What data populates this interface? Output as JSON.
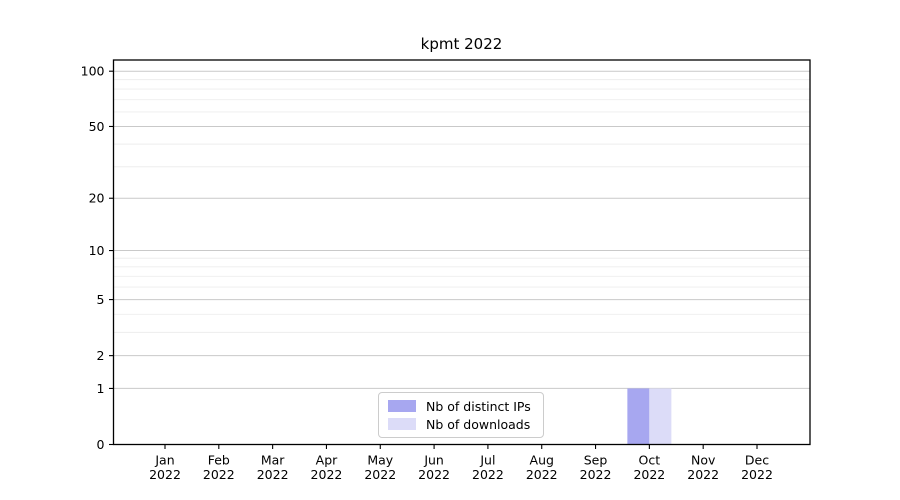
{
  "chart_data": {
    "type": "bar",
    "title": "kpmt 2022",
    "categories": [
      "Jan 2022",
      "Feb 2022",
      "Mar 2022",
      "Apr 2022",
      "May 2022",
      "Jun 2022",
      "Jul 2022",
      "Aug 2022",
      "Sep 2022",
      "Oct 2022",
      "Nov 2022",
      "Dec 2022"
    ],
    "series": [
      {
        "name": "Nb of distinct IPs",
        "color": "#a7a7f0",
        "values": [
          0,
          0,
          0,
          0,
          0,
          0,
          0,
          0,
          0,
          1,
          0,
          0
        ]
      },
      {
        "name": "Nb of downloads",
        "color": "#dcdcf8",
        "values": [
          0,
          0,
          0,
          0,
          0,
          0,
          0,
          0,
          0,
          1,
          0,
          0
        ]
      }
    ],
    "xlabel": "",
    "ylabel": "",
    "yticks": [
      0,
      1,
      2,
      5,
      10,
      20,
      50,
      100
    ],
    "minor_yticks": [
      3,
      4,
      6,
      7,
      8,
      9,
      30,
      40,
      60,
      70,
      80,
      90
    ],
    "scale": "log10(1+x)",
    "ylim": [
      0,
      115
    ],
    "grid": true,
    "legend_position": "bottom-center",
    "colors": {
      "major_grid": "#c9c9c9",
      "minor_grid": "#ededed",
      "axis": "#000000",
      "background": "#ffffff"
    }
  }
}
